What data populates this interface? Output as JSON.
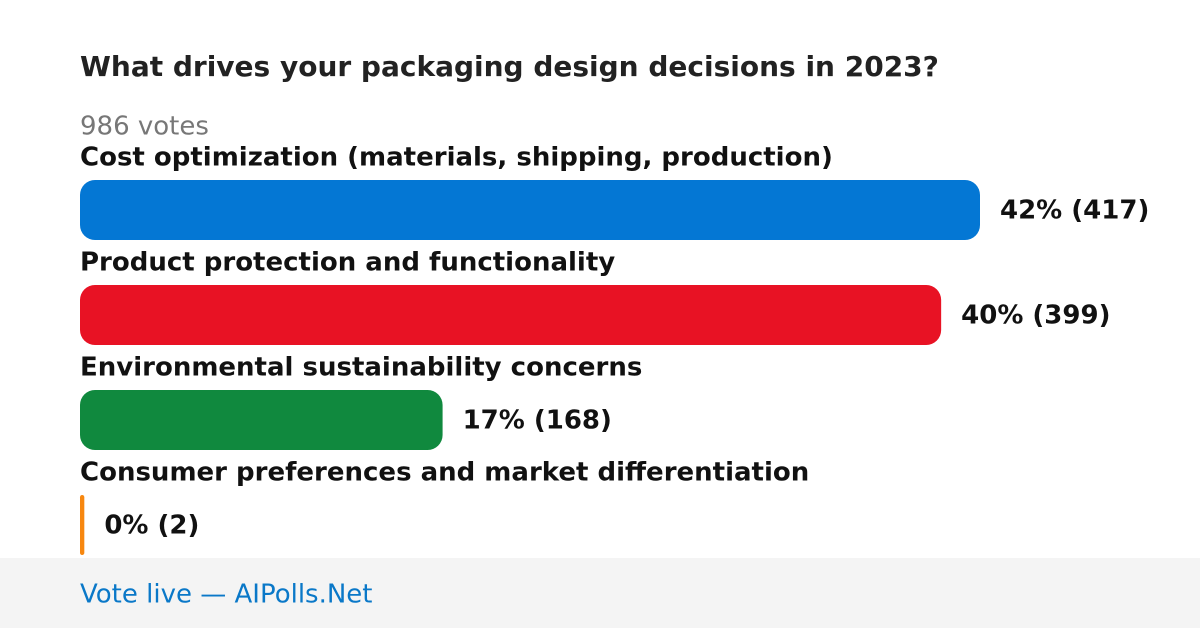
{
  "chart_data": {
    "type": "bar",
    "orientation": "horizontal",
    "title": "What drives your packaging design decisions in 2023?",
    "subtitle": "986 votes",
    "categories": [
      "Cost optimization (materials, shipping, production)",
      "Product protection and functionality",
      "Environmental sustainability concerns",
      "Consumer preferences and market differentiation"
    ],
    "values": [
      417,
      399,
      168,
      2
    ],
    "value_labels": [
      "42% (417)",
      "40% (399)",
      "17% (168)",
      "0% (2)"
    ],
    "colors": [
      "#0477d4",
      "#e81224",
      "#10893e",
      "#f7870f"
    ],
    "footer": "Vote live — AIPolls.Net"
  }
}
